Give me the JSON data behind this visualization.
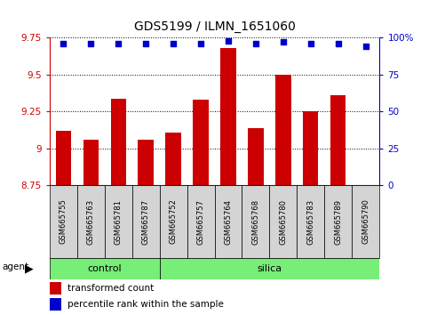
{
  "title": "GDS5199 / ILMN_1651060",
  "samples": [
    "GSM665755",
    "GSM665763",
    "GSM665781",
    "GSM665787",
    "GSM665752",
    "GSM665757",
    "GSM665764",
    "GSM665768",
    "GSM665780",
    "GSM665783",
    "GSM665789",
    "GSM665790"
  ],
  "bar_values": [
    9.12,
    9.06,
    9.34,
    9.06,
    9.11,
    9.33,
    9.68,
    9.14,
    9.5,
    9.25,
    9.36,
    8.75
  ],
  "percentile_values": [
    96,
    96,
    96,
    96,
    96,
    96,
    98,
    96,
    97,
    96,
    96,
    94
  ],
  "bar_bottom": 8.75,
  "ylim_left": [
    8.75,
    9.75
  ],
  "ylim_right": [
    0,
    100
  ],
  "yticks_left": [
    8.75,
    9.0,
    9.25,
    9.5,
    9.75
  ],
  "yticks_right": [
    0,
    25,
    50,
    75,
    100
  ],
  "ytick_labels_left": [
    "8.75",
    "9",
    "9.25",
    "9.5",
    "9.75"
  ],
  "ytick_labels_right": [
    "0",
    "25",
    "50",
    "75",
    "100%"
  ],
  "bar_color": "#cc0000",
  "dot_color": "#0000cc",
  "ctrl_count": 4,
  "silica_count": 8,
  "control_color": "#77ee77",
  "legend_items": [
    "transformed count",
    "percentile rank within the sample"
  ],
  "legend_colors": [
    "#cc0000",
    "#0000cc"
  ],
  "sample_box_color": "#d4d4d4",
  "title_fontsize": 10,
  "tick_fontsize": 7.5,
  "label_fontsize": 7.5
}
